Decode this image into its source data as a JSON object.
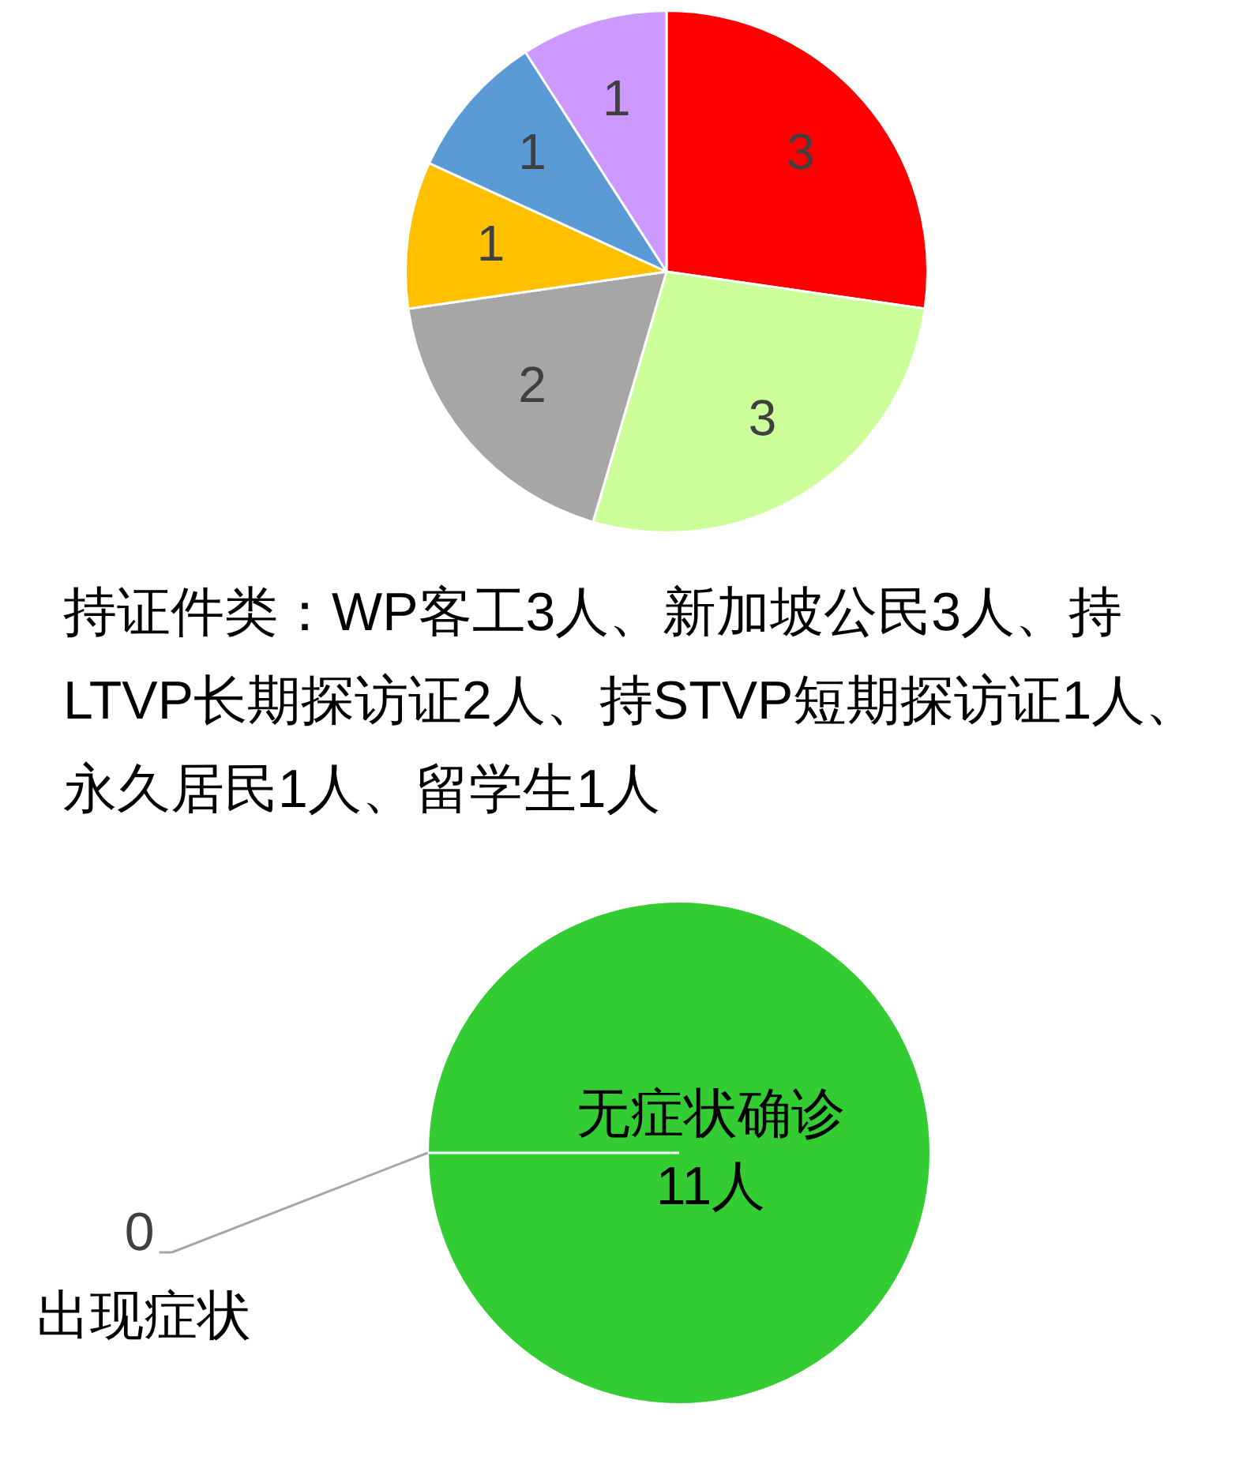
{
  "chart_data": [
    {
      "type": "pie",
      "categories": [
        null,
        null,
        null,
        null,
        null,
        null
      ],
      "values": [
        3,
        3,
        2,
        1,
        1,
        1
      ],
      "colors": [
        "#ff0000",
        "#ccff99",
        "#a6a6a6",
        "#ffc000",
        "#5b9bd5",
        "#cc99ff"
      ],
      "data_labels": true,
      "annotations": [
        "持证件类：WP客工3人、新加坡公民3人、持LTVP长期探访证2人、持STVP短期探访证1人、永久居民1人、留学生1人"
      ]
    },
    {
      "type": "pie",
      "categories": [
        "无症状确诊",
        "出现症状"
      ],
      "values": [
        11,
        0
      ],
      "colors": [
        "#33cc33",
        "#33cc33"
      ],
      "value_labels": [
        "11人",
        "0"
      ]
    }
  ]
}
